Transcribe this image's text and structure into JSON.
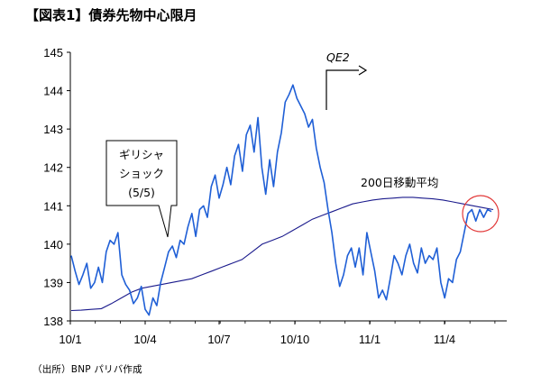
{
  "chart_data": {
    "type": "line",
    "title": "【図表1】債券先物中心限月",
    "source": "（出所）BNP パリバ作成",
    "ylim": [
      138,
      145
    ],
    "y_ticks": [
      "138",
      "139",
      "140",
      "141",
      "142",
      "143",
      "144",
      "145"
    ],
    "x_ticks": [
      "10/1",
      "10/4",
      "10/7",
      "10/10",
      "11/1",
      "11/4"
    ],
    "grid": false,
    "series": [
      {
        "values": [
          139.7,
          139.3,
          138.95,
          139.2,
          139.5,
          138.85,
          139.0,
          139.4,
          139.0,
          139.8,
          140.1,
          140.0,
          140.3,
          139.2,
          138.95,
          138.8,
          138.45,
          138.6,
          138.9,
          138.3,
          138.15,
          138.6,
          138.4,
          139.0,
          139.4,
          139.8,
          139.95,
          139.65,
          140.1,
          140.0,
          140.45,
          140.8,
          140.2,
          140.9,
          141.0,
          140.7,
          141.5,
          141.8,
          141.2,
          141.55,
          142.0,
          141.55,
          142.3,
          142.6,
          141.9,
          142.85,
          143.1,
          142.4,
          143.3,
          142.0,
          141.3,
          142.2,
          141.5,
          142.4,
          142.9,
          143.7,
          143.9,
          144.15,
          143.8,
          143.6,
          143.4,
          143.05,
          143.25,
          142.5,
          142.0,
          141.6,
          140.9,
          140.3,
          139.5,
          138.9,
          139.2,
          139.7,
          139.9,
          139.4,
          139.9,
          139.2,
          140.3,
          139.8,
          139.3,
          138.6,
          138.8,
          138.55,
          139.1,
          139.7,
          139.5,
          139.2,
          139.7,
          140.0,
          139.5,
          139.25,
          139.9,
          139.5,
          139.7,
          139.6,
          139.9,
          139.0,
          138.6,
          139.1,
          139.0,
          139.6,
          139.8,
          140.3,
          140.8,
          140.9,
          140.6,
          140.9,
          140.7,
          140.9,
          140.85
        ]
      },
      {
        "values": [
          138.27,
          138.28,
          138.3,
          138.32,
          138.45,
          138.6,
          138.75,
          138.85,
          138.9,
          138.95,
          139.0,
          139.05,
          139.1,
          139.2,
          139.3,
          139.4,
          139.5,
          139.6,
          139.8,
          140.0,
          140.1,
          140.2,
          140.35,
          140.5,
          140.65,
          140.75,
          140.85,
          140.95,
          141.05,
          141.1,
          141.15,
          141.18,
          141.2,
          141.22,
          141.22,
          141.2,
          141.18,
          141.15,
          141.1,
          141.05,
          141.0,
          140.95,
          140.9
        ],
        "label": "200日移動平均"
      }
    ],
    "annotations": {
      "event_lines": [
        "ギリシャ",
        "ショック",
        "(5/5)"
      ],
      "qe2": "QE2"
    },
    "colors": {
      "price": "#1f5fd6",
      "ma": "#1a1a8c",
      "circle": "#e23a3a"
    }
  }
}
